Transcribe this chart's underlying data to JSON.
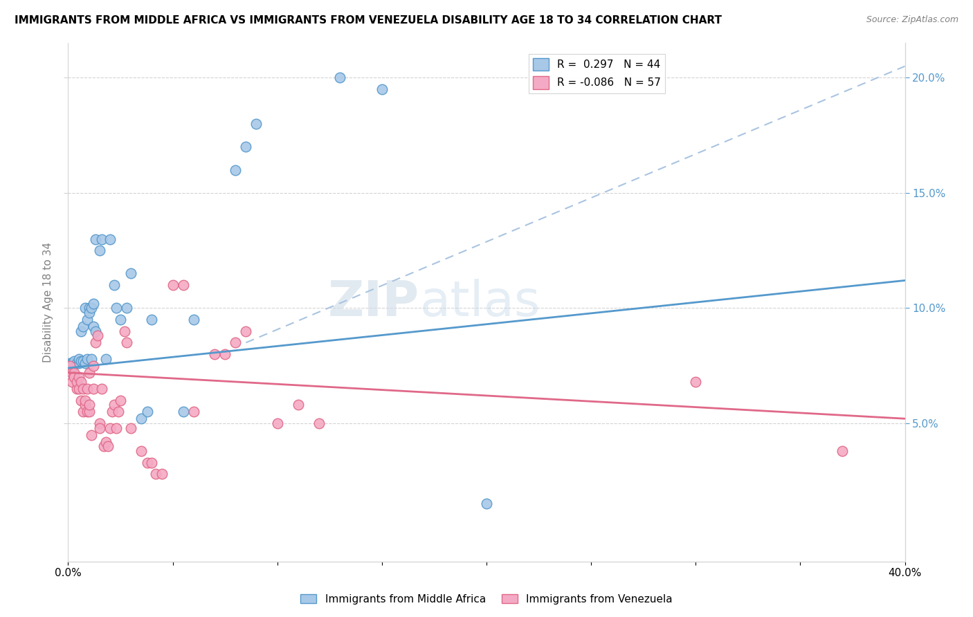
{
  "title": "IMMIGRANTS FROM MIDDLE AFRICA VS IMMIGRANTS FROM VENEZUELA DISABILITY AGE 18 TO 34 CORRELATION CHART",
  "source": "Source: ZipAtlas.com",
  "ylabel": "Disability Age 18 to 34",
  "xlim": [
    0.0,
    0.4
  ],
  "ylim": [
    -0.01,
    0.215
  ],
  "ytick_positions": [
    0.05,
    0.1,
    0.15,
    0.2
  ],
  "ytick_labels_right": [
    "5.0%",
    "10.0%",
    "15.0%",
    "20.0%"
  ],
  "xtick_positions": [
    0.0,
    0.05,
    0.1,
    0.15,
    0.2,
    0.25,
    0.3,
    0.35,
    0.4
  ],
  "xtick_labels": [
    "0.0%",
    "",
    "",
    "",
    "",
    "",
    "",
    "",
    "40.0%"
  ],
  "legend_r1": "R =  0.297",
  "legend_n1": "N = 44",
  "legend_r2": "R = -0.086",
  "legend_n2": "N = 57",
  "color_blue": "#a8c8e8",
  "color_pink": "#f4aac4",
  "color_line_blue": "#5599cc",
  "color_line_pink": "#e06888",
  "color_line_dash": "#aac4e0",
  "watermark_zip": "ZIP",
  "watermark_atlas": "atlas",
  "blue_reg_line": [
    [
      0.0,
      0.074
    ],
    [
      0.4,
      0.112
    ]
  ],
  "pink_reg_line": [
    [
      0.0,
      0.072
    ],
    [
      0.4,
      0.052
    ]
  ],
  "dash_line": [
    [
      0.085,
      0.085
    ],
    [
      0.4,
      0.205
    ]
  ],
  "blue_points": [
    [
      0.001,
      0.076
    ],
    [
      0.002,
      0.076
    ],
    [
      0.002,
      0.075
    ],
    [
      0.003,
      0.076
    ],
    [
      0.003,
      0.077
    ],
    [
      0.004,
      0.076
    ],
    [
      0.005,
      0.076
    ],
    [
      0.005,
      0.078
    ],
    [
      0.006,
      0.077
    ],
    [
      0.006,
      0.09
    ],
    [
      0.007,
      0.092
    ],
    [
      0.007,
      0.077
    ],
    [
      0.008,
      0.076
    ],
    [
      0.008,
      0.1
    ],
    [
      0.009,
      0.095
    ],
    [
      0.009,
      0.078
    ],
    [
      0.01,
      0.1
    ],
    [
      0.01,
      0.098
    ],
    [
      0.011,
      0.1
    ],
    [
      0.011,
      0.078
    ],
    [
      0.012,
      0.092
    ],
    [
      0.012,
      0.102
    ],
    [
      0.013,
      0.09
    ],
    [
      0.013,
      0.13
    ],
    [
      0.015,
      0.125
    ],
    [
      0.016,
      0.13
    ],
    [
      0.018,
      0.078
    ],
    [
      0.02,
      0.13
    ],
    [
      0.022,
      0.11
    ],
    [
      0.023,
      0.1
    ],
    [
      0.025,
      0.095
    ],
    [
      0.028,
      0.1
    ],
    [
      0.03,
      0.115
    ],
    [
      0.035,
      0.052
    ],
    [
      0.038,
      0.055
    ],
    [
      0.04,
      0.095
    ],
    [
      0.055,
      0.055
    ],
    [
      0.06,
      0.095
    ],
    [
      0.08,
      0.16
    ],
    [
      0.085,
      0.17
    ],
    [
      0.09,
      0.18
    ],
    [
      0.13,
      0.2
    ],
    [
      0.15,
      0.195
    ],
    [
      0.2,
      0.015
    ]
  ],
  "pink_points": [
    [
      0.001,
      0.075
    ],
    [
      0.002,
      0.072
    ],
    [
      0.002,
      0.068
    ],
    [
      0.003,
      0.072
    ],
    [
      0.003,
      0.07
    ],
    [
      0.004,
      0.065
    ],
    [
      0.004,
      0.068
    ],
    [
      0.005,
      0.07
    ],
    [
      0.005,
      0.065
    ],
    [
      0.006,
      0.068
    ],
    [
      0.006,
      0.06
    ],
    [
      0.007,
      0.065
    ],
    [
      0.007,
      0.055
    ],
    [
      0.008,
      0.058
    ],
    [
      0.008,
      0.06
    ],
    [
      0.009,
      0.065
    ],
    [
      0.009,
      0.055
    ],
    [
      0.01,
      0.055
    ],
    [
      0.01,
      0.058
    ],
    [
      0.01,
      0.072
    ],
    [
      0.011,
      0.045
    ],
    [
      0.012,
      0.065
    ],
    [
      0.012,
      0.075
    ],
    [
      0.013,
      0.085
    ],
    [
      0.014,
      0.088
    ],
    [
      0.015,
      0.05
    ],
    [
      0.015,
      0.048
    ],
    [
      0.016,
      0.065
    ],
    [
      0.017,
      0.04
    ],
    [
      0.018,
      0.042
    ],
    [
      0.019,
      0.04
    ],
    [
      0.02,
      0.048
    ],
    [
      0.021,
      0.055
    ],
    [
      0.022,
      0.058
    ],
    [
      0.023,
      0.048
    ],
    [
      0.024,
      0.055
    ],
    [
      0.025,
      0.06
    ],
    [
      0.027,
      0.09
    ],
    [
      0.028,
      0.085
    ],
    [
      0.03,
      0.048
    ],
    [
      0.035,
      0.038
    ],
    [
      0.038,
      0.033
    ],
    [
      0.04,
      0.033
    ],
    [
      0.042,
      0.028
    ],
    [
      0.045,
      0.028
    ],
    [
      0.05,
      0.11
    ],
    [
      0.055,
      0.11
    ],
    [
      0.06,
      0.055
    ],
    [
      0.07,
      0.08
    ],
    [
      0.075,
      0.08
    ],
    [
      0.08,
      0.085
    ],
    [
      0.085,
      0.09
    ],
    [
      0.1,
      0.05
    ],
    [
      0.11,
      0.058
    ],
    [
      0.12,
      0.05
    ],
    [
      0.3,
      0.068
    ],
    [
      0.37,
      0.038
    ]
  ]
}
